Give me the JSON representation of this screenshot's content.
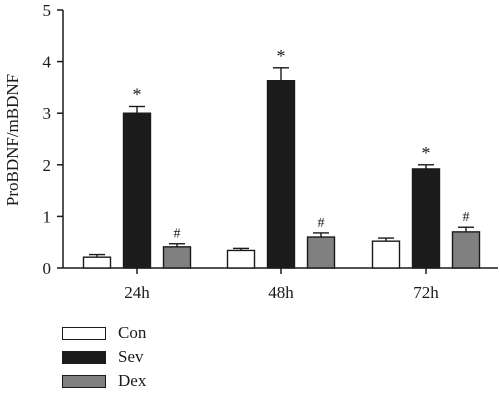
{
  "chart_data": {
    "type": "bar",
    "ylabel": "ProBDNF/mBDNF",
    "xlabel": "",
    "ylim": [
      0,
      5
    ],
    "yticks": [
      "0",
      "1",
      "2",
      "3",
      "4",
      "5"
    ],
    "categories": [
      "24h",
      "48h",
      "72h"
    ],
    "series": [
      {
        "name": "Con",
        "color": "#ffffff",
        "values": [
          0.21,
          0.34,
          0.52
        ],
        "errors": [
          0.05,
          0.04,
          0.06
        ],
        "marks": [
          "",
          "",
          ""
        ]
      },
      {
        "name": "Sev",
        "color": "#1c1c1c",
        "values": [
          3.0,
          3.63,
          1.92
        ],
        "errors": [
          0.13,
          0.25,
          0.08
        ],
        "marks": [
          "*",
          "*",
          "*"
        ]
      },
      {
        "name": "Dex",
        "color": "#808080",
        "values": [
          0.41,
          0.6,
          0.7
        ],
        "errors": [
          0.06,
          0.08,
          0.09
        ],
        "marks": [
          "#",
          "#",
          "#"
        ]
      }
    ],
    "grid": false,
    "legend_position": "bottom-left"
  }
}
